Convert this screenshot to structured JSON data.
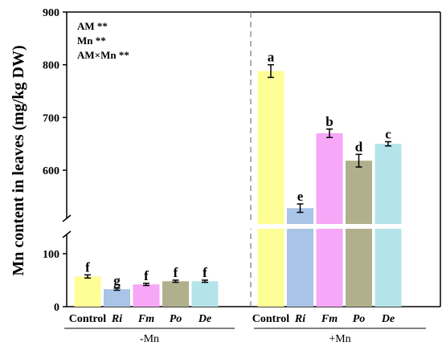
{
  "chart_data": {
    "type": "bar",
    "ylabel": "Mn content in leaves (mg/kg DW)",
    "y_axis": {
      "broken": true,
      "lower_range": [
        0,
        150
      ],
      "upper_range": [
        500,
        900
      ],
      "lower_ticks": [
        "0",
        "100"
      ],
      "upper_ticks": [
        "600",
        "700",
        "800",
        "900"
      ]
    },
    "groups": [
      {
        "label": "-Mn",
        "categories": [
          "Control",
          "Ri",
          "Fm",
          "Po",
          "De"
        ],
        "values": [
          57,
          33,
          42,
          48,
          48
        ],
        "errors": [
          3,
          2,
          2,
          2,
          2
        ],
        "letters": [
          "f",
          "g",
          "f",
          "f",
          "f"
        ]
      },
      {
        "label": "+Mn",
        "categories": [
          "Control",
          "Ri",
          "Fm",
          "Po",
          "De"
        ],
        "values": [
          788,
          528,
          670,
          618,
          650
        ],
        "errors": [
          12,
          8,
          8,
          12,
          4
        ],
        "letters": [
          "a",
          "e",
          "b",
          "d",
          "c"
        ]
      }
    ],
    "bar_colors": [
      "#fefe96",
      "#a8c4e6",
      "#f7a7f7",
      "#b0b08c",
      "#b4e4ea"
    ],
    "italic_categories": [
      "Ri",
      "Fm",
      "Po",
      "De"
    ],
    "stats": [
      {
        "label": "AM",
        "sig": "**"
      },
      {
        "label": "Mn",
        "sig": "**"
      },
      {
        "label": "AM×Mn",
        "sig": "**"
      }
    ]
  }
}
